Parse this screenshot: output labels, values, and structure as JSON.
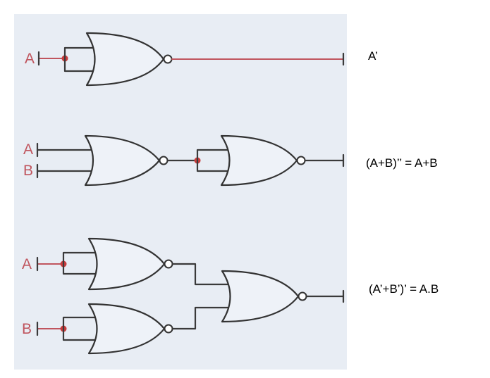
{
  "colors": {
    "panel": "#e8edf4",
    "input_wire": "#c0555e",
    "junction_dot": "#c83c3c",
    "output_wire_top": "#c0555e",
    "gate_stroke": "#333333"
  },
  "diagram_type": "logic-circuit",
  "gate_type": "NOR",
  "circuits": [
    {
      "inputs": [
        "A"
      ],
      "output_expression": "A’"
    },
    {
      "inputs": [
        "A",
        "B"
      ],
      "output_expression": "(A+B)’’ = A+B"
    },
    {
      "inputs": [
        "A",
        "B"
      ],
      "output_expression": "(A’+B’)’ = A.B"
    }
  ]
}
